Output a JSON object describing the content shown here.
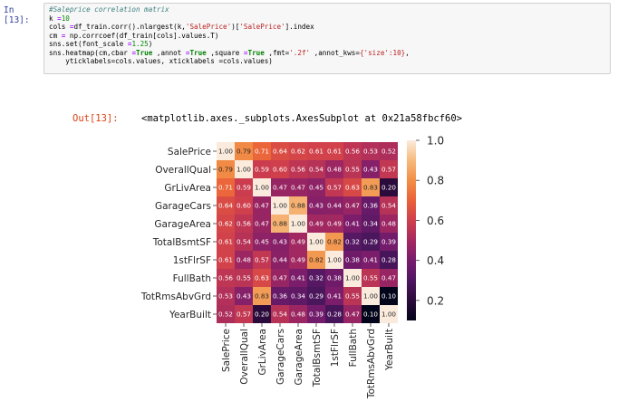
{
  "input_cell": {
    "prompt": "In [13]:",
    "lines": [
      [
        {
          "t": "#Saleprice correlation matrix",
          "c": "cm"
        }
      ],
      [
        {
          "t": "k ",
          "c": ""
        },
        {
          "t": "=",
          "c": "op"
        },
        {
          "t": "10",
          "c": "nm"
        }
      ],
      [
        {
          "t": "cols ",
          "c": ""
        },
        {
          "t": "=",
          "c": "op"
        },
        {
          "t": "df_train.corr().nlargest(k,",
          "c": ""
        },
        {
          "t": "'SalePrice'",
          "c": "st"
        },
        {
          "t": ")[",
          "c": ""
        },
        {
          "t": "'SalePrice'",
          "c": "st"
        },
        {
          "t": "].index",
          "c": ""
        }
      ],
      [
        {
          "t": "cm ",
          "c": ""
        },
        {
          "t": "=",
          "c": "op"
        },
        {
          "t": " np.corrcoef(df_train[cols].values.T)",
          "c": ""
        }
      ],
      [
        {
          "t": "sns.set(font_scale ",
          "c": ""
        },
        {
          "t": "=",
          "c": "op"
        },
        {
          "t": "1.25",
          "c": "nm"
        },
        {
          "t": ")",
          "c": ""
        }
      ],
      [
        {
          "t": "sns.heatmap(cm,cbar ",
          "c": ""
        },
        {
          "t": "=",
          "c": "op"
        },
        {
          "t": "True",
          "c": "kw"
        },
        {
          "t": " ,annot ",
          "c": ""
        },
        {
          "t": "=",
          "c": "op"
        },
        {
          "t": "True",
          "c": "kw"
        },
        {
          "t": " ,square ",
          "c": ""
        },
        {
          "t": "=",
          "c": "op"
        },
        {
          "t": "True",
          "c": "kw"
        },
        {
          "t": " ,fmt=",
          "c": ""
        },
        {
          "t": "'.2f'",
          "c": "st"
        },
        {
          "t": " ,annot_kws=",
          "c": ""
        },
        {
          "t": "{'size':10}",
          "c": "st"
        },
        {
          "t": ",",
          "c": ""
        }
      ],
      [
        {
          "t": "    yticklabels=cols.values, xticklabels =cols.values)",
          "c": ""
        }
      ]
    ]
  },
  "output_cell": {
    "prompt": "Out[13]:",
    "text": "<matplotlib.axes._subplots.AxesSubplot at 0x21a58fbcf60>"
  },
  "chart_data": {
    "type": "heatmap",
    "title": "",
    "xlabel": "",
    "ylabel": "",
    "labels": [
      "SalePrice",
      "OverallQual",
      "GrLivArea",
      "GarageCars",
      "GarageArea",
      "TotalBsmtSF",
      "1stFlrSF",
      "FullBath",
      "TotRmsAbvGrd",
      "YearBuilt"
    ],
    "values": [
      [
        1.0,
        0.79,
        0.71,
        0.64,
        0.62,
        0.61,
        0.61,
        0.56,
        0.53,
        0.52
      ],
      [
        0.79,
        1.0,
        0.59,
        0.6,
        0.56,
        0.54,
        0.48,
        0.55,
        0.43,
        0.57
      ],
      [
        0.71,
        0.59,
        1.0,
        0.47,
        0.47,
        0.45,
        0.57,
        0.63,
        0.83,
        0.2
      ],
      [
        0.64,
        0.6,
        0.47,
        1.0,
        0.88,
        0.43,
        0.44,
        0.47,
        0.36,
        0.54
      ],
      [
        0.62,
        0.56,
        0.47,
        0.88,
        1.0,
        0.49,
        0.49,
        0.41,
        0.34,
        0.48
      ],
      [
        0.61,
        0.54,
        0.45,
        0.43,
        0.49,
        1.0,
        0.82,
        0.32,
        0.29,
        0.39
      ],
      [
        0.61,
        0.48,
        0.57,
        0.44,
        0.49,
        0.82,
        1.0,
        0.38,
        0.41,
        0.28
      ],
      [
        0.56,
        0.55,
        0.63,
        0.47,
        0.41,
        0.32,
        0.38,
        1.0,
        0.55,
        0.47
      ],
      [
        0.53,
        0.43,
        0.83,
        0.36,
        0.34,
        0.29,
        0.41,
        0.55,
        1.0,
        0.1
      ],
      [
        0.52,
        0.57,
        0.2,
        0.54,
        0.48,
        0.39,
        0.28,
        0.47,
        0.1,
        1.0
      ]
    ],
    "colorbar": {
      "min": 0.1,
      "max": 1.0,
      "ticks": [
        0.2,
        0.4,
        0.6,
        0.8,
        1.0
      ],
      "tick_labels": [
        "0.2",
        "0.4",
        "0.6",
        "0.8",
        "1.0"
      ]
    },
    "colormap": [
      "#03051a",
      "#2b0b3b",
      "#4e1760",
      "#781c6d",
      "#a5295f",
      "#cf3f4c",
      "#ea6139",
      "#f28f46",
      "#f6ba7c",
      "#faebdd"
    ],
    "value_format": ".2f",
    "colorbar_position": "right"
  }
}
